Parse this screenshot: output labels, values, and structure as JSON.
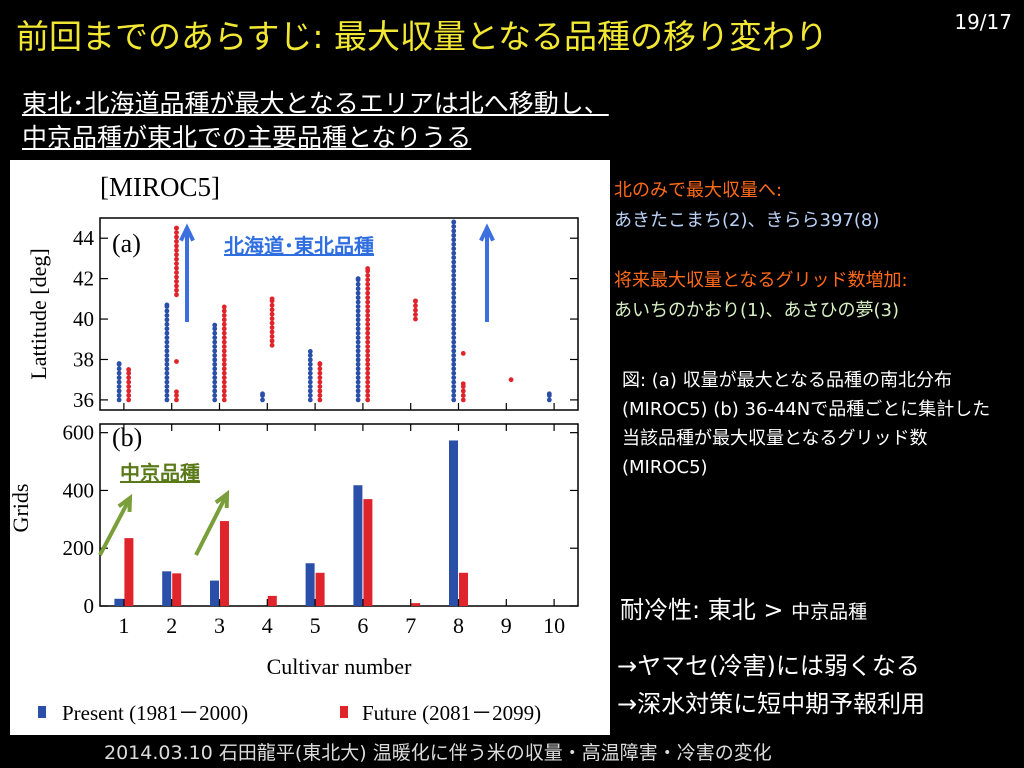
{
  "slide": {
    "title": "前回までのあらすじ: 最大収量となる品種の移り変わり",
    "page": "19/17",
    "subtitle_line1": "東北･北海道品種が最大となるエリアは北へ移動し、",
    "subtitle_line2": "中京品種が東北での主要品種となりうる"
  },
  "notes": {
    "north_only_title": "北のみで最大収量へ:",
    "north_only_items": "あきたこまち(2)、きらら397(8)",
    "increase_title": "将来最大収量となるグリッド数増加:",
    "increase_items": "あいちのかおり(1)、あさひの夢(3)",
    "caption": "図: (a) 収量が最大となる品種の南北分布(MIROC5) (b) 36-44Nで品種ごとに集計した当該品種が最大収量となるグリッド数(MIROC5)",
    "cold_tolerance_label": "耐冷性: 東北 >",
    "cold_tolerance_small": "中京品種",
    "point1": "→ヤマセ(冷害)には弱くなる",
    "point2": "→深水対策に短中期予報利用"
  },
  "footer": "2014.03.10 石田龍平(東北大) 温暖化に伴う米の収量・高温障害・冷害の変化",
  "colors": {
    "present": "#2a4fa8",
    "future": "#e0242c",
    "title": "#f2e833",
    "hokkaido_label": "#2f6ee0",
    "chukyo_label": "#5a7a1a",
    "arrow_blue": "#3c6fe0",
    "arrow_green": "#7a9e3a"
  },
  "chart_data": [
    {
      "type": "scatter",
      "title": "[MIROC5]",
      "panel_label": "(a)",
      "xlabel": "",
      "ylabel": "Lattitude [deg]",
      "ylim": [
        35.5,
        45
      ],
      "yticks": [
        36,
        38,
        40,
        42,
        44
      ],
      "xlim": [
        0.5,
        10.5
      ],
      "annotation": "北海道･東北品種",
      "series": [
        {
          "name": "Present (1981－2000)",
          "offset": -0.1,
          "ranges": [
            {
              "x": 1,
              "ymin": 36,
              "ymax": 37.8
            },
            {
              "x": 2,
              "ymin": 36,
              "ymax": 40.7
            },
            {
              "x": 3,
              "ymin": 36,
              "ymax": 39.7
            },
            {
              "x": 4,
              "ymin": 36,
              "ymax": 36.3
            },
            {
              "x": 5,
              "ymin": 36,
              "ymax": 38.4
            },
            {
              "x": 6,
              "ymin": 36,
              "ymax": 42
            },
            {
              "x": 8,
              "ymin": 36,
              "ymax": 44.8
            },
            {
              "x": 10,
              "ymin": 36,
              "ymax": 36.3
            }
          ]
        },
        {
          "name": "Future (2081－2099)",
          "offset": 0.1,
          "ranges": [
            {
              "x": 1,
              "ymin": 36,
              "ymax": 37.5
            },
            {
              "x": 2,
              "ymin": 36,
              "ymax": 36.4
            },
            {
              "x": 2,
              "ymin": 37.9,
              "ymax": 37.9
            },
            {
              "x": 2,
              "ymin": 41.2,
              "ymax": 44.5
            },
            {
              "x": 3,
              "ymin": 36,
              "ymax": 40.6
            },
            {
              "x": 4,
              "ymin": 38.7,
              "ymax": 41
            },
            {
              "x": 5,
              "ymin": 36,
              "ymax": 37.8
            },
            {
              "x": 6,
              "ymin": 36,
              "ymax": 42.5
            },
            {
              "x": 7,
              "ymin": 40,
              "ymax": 40.9
            },
            {
              "x": 8,
              "ymin": 36,
              "ymax": 36.8
            },
            {
              "x": 8,
              "ymin": 38.3,
              "ymax": 38.3
            },
            {
              "x": 9,
              "ymin": 37,
              "ymax": 37
            }
          ]
        }
      ]
    },
    {
      "type": "bar",
      "panel_label": "(b)",
      "xlabel": "Cultivar number",
      "ylabel": "Grids",
      "ylim": [
        0,
        630
      ],
      "yticks": [
        0,
        200,
        400,
        600
      ],
      "categories": [
        "1",
        "2",
        "3",
        "4",
        "5",
        "6",
        "7",
        "8",
        "9",
        "10"
      ],
      "annotation": "中京品種",
      "series": [
        {
          "name": "Present (1981－2000)",
          "values": [
            25,
            120,
            88,
            0,
            148,
            418,
            0,
            573,
            0,
            0
          ]
        },
        {
          "name": "Future (2081－2099)",
          "values": [
            235,
            113,
            294,
            35,
            115,
            370,
            10,
            115,
            0,
            0
          ]
        }
      ],
      "legend_present": "Present (1981－2000)",
      "legend_future": "Future (2081－2099)"
    }
  ]
}
